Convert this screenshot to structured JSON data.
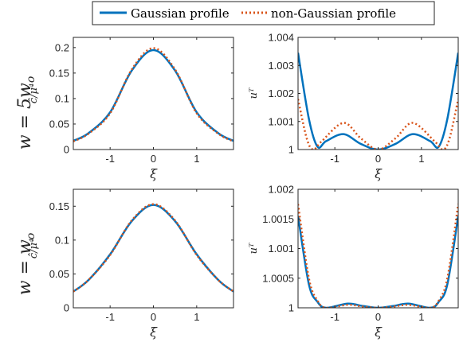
{
  "legend": {
    "entries": [
      {
        "label": "Gaussian profile",
        "color": "#0072BD",
        "style": "solid"
      },
      {
        "label": "non-Gaussian profile",
        "color": "#D95319",
        "style": "dotted"
      }
    ]
  },
  "row_labels": [
    {
      "text_main": "w = 5w",
      "text_sub": "o"
    },
    {
      "text_main": "w = w",
      "text_sub": "o"
    }
  ],
  "chart_data": [
    {
      "type": "line",
      "panel": "top-left",
      "xlabel": "ξ",
      "ylabel": "ĉ/μ⁴",
      "xlim": [
        -1.85,
        1.85
      ],
      "ylim": [
        0,
        0.22
      ],
      "xticks": [
        -1,
        0,
        1
      ],
      "xticklabels": [
        "-1",
        "0",
        "1"
      ],
      "yticks": [
        0,
        0.05,
        0.1,
        0.15,
        0.2
      ],
      "yticklabels": [
        "0",
        "0.05",
        "0.1",
        "0.15",
        "0.2"
      ],
      "series": [
        {
          "name": "Gaussian profile",
          "x": [
            -1.85,
            -1.5,
            -1.0,
            -0.5,
            0,
            0.5,
            1.0,
            1.5,
            1.85
          ],
          "y": [
            0.017,
            0.032,
            0.073,
            0.155,
            0.195,
            0.155,
            0.073,
            0.032,
            0.017
          ]
        },
        {
          "name": "non-Gaussian profile",
          "x": [
            -1.85,
            -1.5,
            -1.0,
            -0.5,
            0,
            0.5,
            1.0,
            1.5,
            1.85
          ],
          "y": [
            0.016,
            0.031,
            0.071,
            0.157,
            0.199,
            0.157,
            0.071,
            0.031,
            0.016
          ]
        }
      ]
    },
    {
      "type": "line",
      "panel": "top-right",
      "xlabel": "ξ",
      "ylabel": "uᵀ",
      "xlim": [
        -1.85,
        1.85
      ],
      "ylim": [
        1,
        1.004
      ],
      "xticks": [
        -1,
        0,
        1
      ],
      "xticklabels": [
        "-1",
        "0",
        "1"
      ],
      "yticks": [
        1,
        1.001,
        1.002,
        1.003,
        1.004
      ],
      "yticklabels": [
        "1",
        "1.001",
        "1.002",
        "1.003",
        "1.004"
      ],
      "series": [
        {
          "name": "Gaussian profile",
          "x": [
            -1.85,
            -1.6,
            -1.4,
            -1.2,
            -0.8,
            -0.4,
            0,
            0.4,
            0.8,
            1.2,
            1.4,
            1.6,
            1.85
          ],
          "y": [
            1.00345,
            1.0011,
            1.0001,
            1.0003,
            1.00055,
            1.0002,
            1.0,
            1.0002,
            1.00055,
            1.0003,
            1.0001,
            1.0011,
            1.00345
          ]
        },
        {
          "name": "non-Gaussian profile",
          "x": [
            -1.85,
            -1.65,
            -1.5,
            -1.3,
            -0.8,
            -0.4,
            0,
            0.4,
            0.8,
            1.3,
            1.5,
            1.65,
            1.85
          ],
          "y": [
            1.0018,
            1.0004,
            1.0,
            1.0003,
            1.00095,
            1.0004,
            1.0,
            1.0004,
            1.00095,
            1.0003,
            1.0,
            1.0004,
            1.0018
          ]
        }
      ]
    },
    {
      "type": "line",
      "panel": "bottom-left",
      "xlabel": "ξ",
      "ylabel": "ĉ/μ⁴",
      "xlim": [
        -1.85,
        1.85
      ],
      "ylim": [
        0,
        0.175
      ],
      "xticks": [
        -1,
        0,
        1
      ],
      "xticklabels": [
        "-1",
        "0",
        "1"
      ],
      "yticks": [
        0,
        0.05,
        0.1,
        0.15
      ],
      "yticklabels": [
        "0",
        "0.05",
        "0.1",
        "0.15"
      ],
      "series": [
        {
          "name": "Gaussian profile",
          "x": [
            -1.85,
            -1.5,
            -1.0,
            -0.5,
            0,
            0.5,
            1.0,
            1.5,
            1.85
          ],
          "y": [
            0.024,
            0.041,
            0.079,
            0.128,
            0.152,
            0.128,
            0.079,
            0.041,
            0.024
          ]
        },
        {
          "name": "non-Gaussian profile",
          "x": [
            -1.85,
            -1.5,
            -1.0,
            -0.5,
            0,
            0.5,
            1.0,
            1.5,
            1.85
          ],
          "y": [
            0.024,
            0.041,
            0.078,
            0.129,
            0.153,
            0.129,
            0.078,
            0.041,
            0.024
          ]
        }
      ]
    },
    {
      "type": "line",
      "panel": "bottom-right",
      "xlabel": "ξ",
      "ylabel": "uᵀ",
      "xlim": [
        -1.85,
        1.85
      ],
      "ylim": [
        1,
        1.002
      ],
      "xticks": [
        -1,
        0,
        1
      ],
      "xticklabels": [
        "-1",
        "0",
        "1"
      ],
      "yticks": [
        1,
        1.0005,
        1.001,
        1.0015,
        1.002
      ],
      "yticklabels": [
        "1",
        "1.0005",
        "1.001",
        "1.0015",
        "1.002"
      ],
      "series": [
        {
          "name": "Gaussian profile",
          "x": [
            -1.85,
            -1.6,
            -1.4,
            -1.2,
            -0.7,
            -0.35,
            0,
            0.35,
            0.7,
            1.2,
            1.4,
            1.6,
            1.85
          ],
          "y": [
            1.00155,
            1.0004,
            1.0001,
            1.0,
            1.00007,
            1.00003,
            1.0,
            1.00003,
            1.00007,
            1.0,
            1.0001,
            1.0004,
            1.00155
          ]
        },
        {
          "name": "non-Gaussian profile",
          "x": [
            -1.85,
            -1.6,
            -1.4,
            -1.2,
            -0.7,
            -0.35,
            0,
            0.35,
            0.7,
            1.2,
            1.4,
            1.6,
            1.85
          ],
          "y": [
            1.00175,
            1.0005,
            1.00012,
            1.0,
            1.00005,
            1.00002,
            1.0,
            1.00002,
            1.00005,
            1.0,
            1.00012,
            1.0005,
            1.00175
          ]
        }
      ]
    }
  ]
}
